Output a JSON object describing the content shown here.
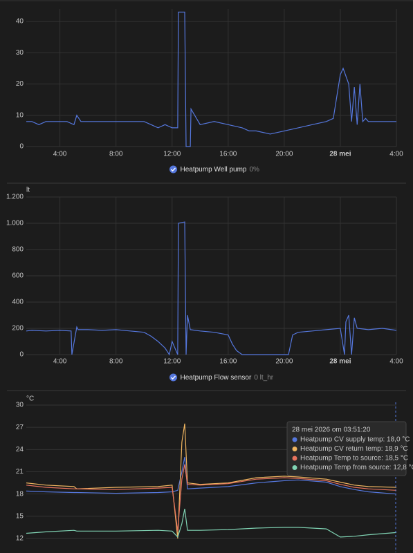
{
  "chart_data": [
    {
      "type": "line",
      "x": [
        1.6,
        2,
        2.5,
        3,
        3.5,
        4,
        4.5,
        5,
        5.2,
        5.5,
        6,
        7,
        8,
        9,
        10,
        10.5,
        11,
        11.5,
        12,
        12.4,
        12.45,
        12.9,
        13.0,
        13.3,
        13.35,
        14,
        15,
        16,
        17,
        17.5,
        18,
        19,
        20,
        21,
        22,
        23,
        23.5,
        24,
        24.2,
        24.6,
        24.8,
        25,
        25.2,
        25.4,
        25.6,
        25.8,
        26,
        27,
        28
      ],
      "xlim": [
        1.6,
        28
      ],
      "xticks": [
        {
          "value": 4,
          "label": "4:00"
        },
        {
          "value": 8,
          "label": "8:00"
        },
        {
          "value": 12,
          "label": "12:00"
        },
        {
          "value": 16,
          "label": "16:00"
        },
        {
          "value": 20,
          "label": "20:00"
        },
        {
          "value": 24,
          "label": "28 mei"
        },
        {
          "value": 28,
          "label": "4:00"
        }
      ],
      "ylim": [
        0,
        44
      ],
      "yticks": [
        0,
        10,
        20,
        30,
        40
      ],
      "grid": true,
      "series": [
        {
          "name": "Heatpump Well pump",
          "state": "0%",
          "color": "#5577dd",
          "values": [
            8,
            8,
            7,
            8,
            8,
            8,
            8,
            7,
            10,
            8,
            8,
            8,
            8,
            8,
            8,
            7,
            6,
            7,
            6,
            6,
            43,
            43,
            0,
            0,
            12,
            7,
            8,
            7,
            6,
            5,
            5,
            4,
            5,
            6,
            7,
            8,
            9,
            23,
            25,
            20,
            8,
            19,
            7,
            20,
            8,
            9,
            8,
            8,
            8
          ]
        }
      ]
    },
    {
      "type": "line",
      "y_label": "lt",
      "x": [
        1.6,
        2,
        3,
        4,
        4.8,
        4.85,
        5.2,
        5.3,
        6,
        7,
        8,
        9,
        10,
        10.5,
        11,
        11.5,
        11.8,
        12,
        12.4,
        12.45,
        12.9,
        13.0,
        13.1,
        13.3,
        14,
        15,
        16,
        16.3,
        16.6,
        17,
        20.3,
        20.6,
        21,
        22,
        23,
        24,
        24.3,
        24.4,
        24.6,
        24.8,
        25,
        25.2,
        26,
        27,
        28
      ],
      "xlim": [
        1.6,
        28
      ],
      "xticks": [
        {
          "value": 4,
          "label": "4:00"
        },
        {
          "value": 8,
          "label": "8:00"
        },
        {
          "value": 12,
          "label": "12:00"
        },
        {
          "value": 16,
          "label": "16:00"
        },
        {
          "value": 20,
          "label": "20:00"
        },
        {
          "value": 24,
          "label": "28 mei"
        },
        {
          "value": 28,
          "label": "4:00"
        }
      ],
      "ylim": [
        0,
        1200
      ],
      "yticks": [
        0,
        200,
        400,
        600,
        800,
        {
          "value": 1000,
          "label": "1.000"
        },
        {
          "value": 1200,
          "label": "1.200"
        }
      ],
      "grid": true,
      "series": [
        {
          "name": "Heatpump Flow sensor",
          "state": "0 lt_hr",
          "color": "#5577dd",
          "values": [
            180,
            185,
            180,
            185,
            180,
            0,
            210,
            190,
            190,
            185,
            190,
            180,
            170,
            140,
            100,
            50,
            0,
            100,
            0,
            1000,
            1010,
            0,
            300,
            190,
            180,
            170,
            150,
            80,
            30,
            0,
            0,
            150,
            170,
            180,
            190,
            200,
            0,
            250,
            300,
            0,
            280,
            200,
            190,
            200,
            185
          ]
        }
      ]
    },
    {
      "type": "line",
      "y_label": "°C",
      "x": [
        1.6,
        3,
        5,
        5.2,
        8,
        11,
        12,
        12.4,
        12.7,
        12.9,
        13.1,
        14,
        16,
        18,
        20,
        21,
        23,
        24,
        25,
        26,
        28
      ],
      "xlim": [
        1.6,
        28
      ],
      "ylim": [
        12,
        30
      ],
      "yticks": [
        12,
        15,
        18,
        21,
        24,
        27,
        30
      ],
      "grid": true,
      "series": [
        {
          "color": "#5577dd",
          "values": [
            18.4,
            18.3,
            18.2,
            18.2,
            18.1,
            18.2,
            18.3,
            18.5,
            21,
            23,
            18.7,
            18.8,
            19.0,
            19.5,
            19.8,
            19.9,
            19.6,
            19.0,
            18.6,
            18.3,
            18.0
          ]
        },
        {
          "color": "#f0b560",
          "values": [
            19.5,
            19.2,
            19.0,
            18.7,
            18.9,
            19.0,
            19.2,
            12,
            25,
            27.5,
            19.5,
            19.3,
            19.5,
            20.2,
            20.4,
            20.3,
            20.0,
            19.6,
            19.2,
            19.0,
            18.9
          ]
        },
        {
          "color": "#e8735e",
          "values": [
            19.2,
            18.9,
            18.7,
            18.7,
            18.6,
            18.8,
            18.9,
            13,
            20,
            22,
            19.3,
            19.2,
            19.4,
            20.0,
            20.2,
            20.1,
            19.8,
            19.3,
            18.9,
            18.7,
            18.5
          ]
        },
        {
          "color": "#80d4b4",
          "values": [
            12.7,
            12.9,
            13.1,
            13.0,
            13.0,
            13.1,
            13.0,
            12.2,
            14,
            16,
            13.1,
            13.1,
            13.2,
            13.4,
            13.5,
            13.5,
            13.3,
            12.2,
            12.3,
            12.5,
            12.8
          ]
        }
      ],
      "tooltip": {
        "title": "28 mei 2026 om 03:51:20",
        "rows": [
          "Heatpump CV supply temp: 18,0 °C",
          "Heatpump CV return temp: 18,9 °C",
          "Heatpump Temp to source: 18,5 °C",
          "Heatpump Temp from source: 12,8 °C"
        ]
      }
    }
  ]
}
